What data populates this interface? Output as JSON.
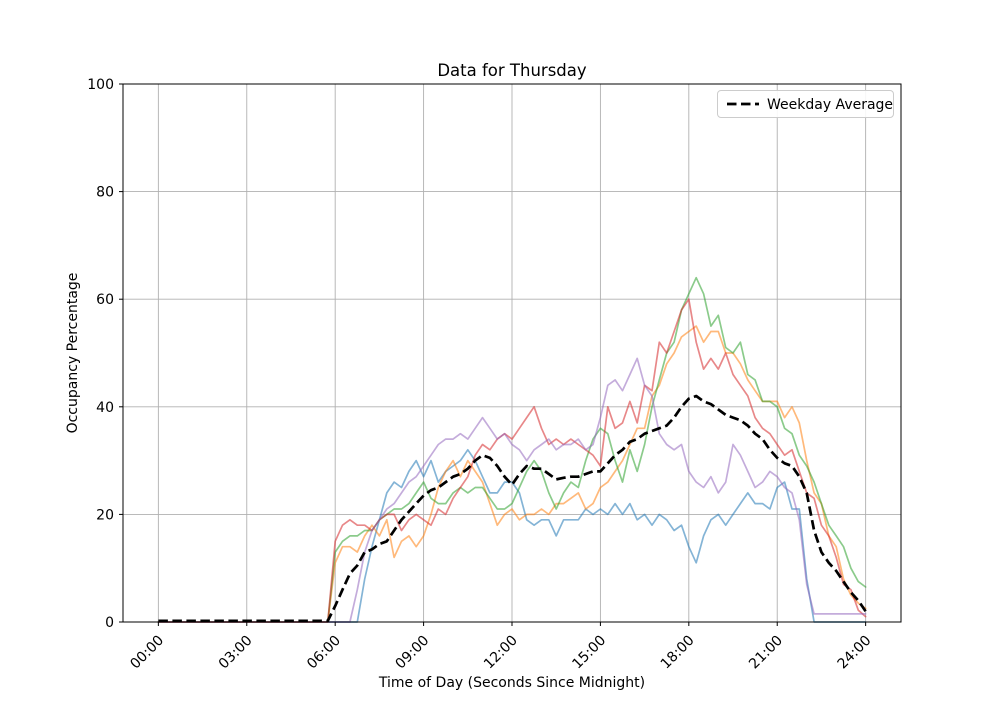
{
  "window": {
    "title": "Data for Thursday"
  },
  "chart_data": {
    "type": "line",
    "title": "Data for Thursday",
    "xlabel": "Time of Day (Seconds Since Midnight)",
    "ylabel": "Occupancy Percentage",
    "ylim": [
      0,
      100
    ],
    "y_ticks": [
      0,
      20,
      40,
      60,
      80,
      100
    ],
    "xlim_seconds": [
      -4320,
      90720
    ],
    "x_ticks": [
      {
        "label": "00:00",
        "seconds": 0
      },
      {
        "label": "03:00",
        "seconds": 10800
      },
      {
        "label": "06:00",
        "seconds": 21600
      },
      {
        "label": "09:00",
        "seconds": 32400
      },
      {
        "label": "12:00",
        "seconds": 43200
      },
      {
        "label": "15:00",
        "seconds": 54000
      },
      {
        "label": "18:00",
        "seconds": 64800
      },
      {
        "label": "21:00",
        "seconds": 75600
      },
      {
        "label": "24:00",
        "seconds": 86400
      }
    ],
    "grid": true,
    "grid_color": "#b0b0b0",
    "x_start_seconds": 0,
    "x_step_seconds": 900,
    "legend": {
      "position": "upper right",
      "entries": [
        {
          "label": "Weekday Average",
          "style": "dashed",
          "color": "#000000"
        }
      ]
    },
    "series": [
      {
        "name": "thursday-series-1",
        "color": "#1f77b4",
        "alpha": 0.55,
        "values": [
          0,
          0,
          0,
          0,
          0,
          0,
          0,
          0,
          0,
          0,
          0,
          0,
          0,
          0,
          0,
          0,
          0,
          0,
          0,
          0,
          0,
          0,
          0,
          0,
          0,
          0,
          0,
          0,
          8,
          14,
          19,
          24,
          26,
          25,
          28,
          30,
          27,
          30,
          26,
          28,
          29,
          30,
          32,
          30,
          27,
          24,
          24,
          26,
          26,
          24,
          19,
          18,
          19,
          19,
          16,
          19,
          19,
          19,
          21,
          20,
          21,
          20,
          22,
          20,
          22,
          19,
          20,
          18,
          20,
          19,
          17,
          18,
          14,
          11,
          16,
          19,
          20,
          18,
          20,
          22,
          24,
          22,
          22,
          21,
          25,
          26,
          21,
          21,
          8,
          0,
          0,
          0,
          0,
          0,
          0,
          0,
          0
        ]
      },
      {
        "name": "thursday-series-2",
        "color": "#ff7f0e",
        "alpha": 0.55,
        "values": [
          0,
          0,
          0,
          0,
          0,
          0,
          0,
          0,
          0,
          0,
          0,
          0,
          0,
          0,
          0,
          0,
          0,
          0,
          0,
          0,
          0,
          0,
          0,
          0,
          11,
          14,
          14,
          13,
          16,
          18,
          16,
          19,
          12,
          15,
          16,
          14,
          16,
          20,
          25,
          28,
          30,
          27,
          30,
          28,
          26,
          22,
          18,
          20,
          21,
          19,
          20,
          20,
          21,
          20,
          22,
          22,
          23,
          24,
          21,
          22,
          25,
          26,
          28,
          30,
          33,
          36,
          36,
          42,
          44,
          48,
          50,
          53,
          54,
          55,
          52,
          54,
          54,
          50,
          50,
          48,
          45,
          43,
          41,
          41,
          41,
          38,
          40,
          37,
          30,
          24,
          22,
          16,
          14,
          8,
          5,
          3.5,
          2.5
        ]
      },
      {
        "name": "thursday-series-3",
        "color": "#2ca02c",
        "alpha": 0.55,
        "values": [
          0,
          0,
          0,
          0,
          0,
          0,
          0,
          0,
          0,
          0,
          0,
          0,
          0,
          0,
          0,
          0,
          0,
          0,
          0,
          0,
          0,
          0,
          0,
          0,
          13,
          15,
          16,
          16,
          17,
          17,
          19,
          20,
          21,
          21,
          22,
          24,
          26,
          23,
          22,
          22,
          24,
          25,
          24,
          25,
          25,
          23,
          21,
          21,
          22,
          25,
          28,
          30,
          28,
          24,
          21,
          24,
          26,
          25,
          30,
          34,
          36,
          35,
          30,
          26,
          32,
          28,
          33,
          40,
          45,
          50,
          52,
          58,
          61,
          64,
          61,
          55,
          57,
          51,
          50,
          52,
          46,
          45,
          41,
          41,
          40,
          36,
          35,
          31,
          29,
          26,
          22,
          18,
          16,
          14,
          10,
          7.5,
          6.5
        ]
      },
      {
        "name": "thursday-series-4",
        "color": "#d62728",
        "alpha": 0.55,
        "values": [
          0,
          0,
          0,
          0,
          0,
          0,
          0,
          0,
          0,
          0,
          0,
          0,
          0,
          0,
          0,
          0,
          0,
          0,
          0,
          0,
          0,
          0,
          0,
          0,
          15,
          18,
          19,
          18,
          18,
          17,
          19,
          20,
          20,
          17,
          19,
          20,
          19,
          18,
          21,
          20,
          23,
          25,
          27,
          31,
          33,
          32,
          34,
          35,
          34,
          36,
          38,
          40,
          36,
          33,
          34,
          33,
          34,
          33,
          32,
          31,
          29,
          40,
          36,
          37,
          41,
          37,
          44,
          43,
          52,
          50,
          54,
          58,
          60,
          52,
          47,
          49,
          47,
          50,
          46,
          44,
          42,
          38,
          36,
          35,
          33,
          31,
          32,
          28,
          24,
          23,
          18,
          16,
          12,
          7,
          6,
          2.2,
          1
        ]
      },
      {
        "name": "thursday-series-5",
        "color": "#9467bd",
        "alpha": 0.55,
        "values": [
          0,
          0,
          0,
          0,
          0,
          0,
          0,
          0,
          0,
          0,
          0,
          0,
          0,
          0,
          0,
          0,
          0,
          0,
          0,
          0,
          0,
          0,
          0,
          0,
          0,
          0,
          0,
          6,
          13,
          17,
          19,
          21,
          22,
          24,
          26,
          27,
          29,
          31,
          33,
          34,
          34,
          35,
          34,
          36,
          38,
          36,
          34,
          35,
          33,
          32,
          30,
          32,
          33,
          34,
          32,
          33,
          33,
          34,
          32,
          33,
          38,
          44,
          45,
          43,
          46,
          49,
          44,
          42,
          35,
          33,
          32,
          33,
          28,
          26,
          25,
          27,
          24,
          26,
          33,
          31,
          28,
          25,
          26,
          28,
          27,
          25,
          24,
          19,
          7,
          1.5,
          1.5,
          1.5,
          1.5,
          1.5,
          1.5,
          1.5,
          1.5
        ]
      }
    ],
    "average_series": {
      "name": "weekday-average",
      "color": "#000000",
      "style": "dashed",
      "linewidth": 2.7,
      "values": [
        0.2,
        0.2,
        0.2,
        0.2,
        0.2,
        0.2,
        0.2,
        0.2,
        0.2,
        0.2,
        0.2,
        0.2,
        0.2,
        0.2,
        0.2,
        0.2,
        0.2,
        0.2,
        0.2,
        0.2,
        0.2,
        0.2,
        0.2,
        0.2,
        3,
        6,
        9,
        10.5,
        13,
        13.5,
        14.5,
        15,
        17,
        19,
        20.5,
        22,
        23.5,
        24.5,
        25,
        26,
        27,
        27.5,
        28.5,
        30,
        31,
        30.5,
        29,
        27,
        25.5,
        27.5,
        29,
        28.5,
        28.5,
        27.5,
        26.5,
        26.8,
        27,
        27,
        27.5,
        28,
        28,
        29.5,
        31,
        32,
        33.5,
        34,
        35,
        35.5,
        36,
        36.5,
        38,
        40,
        41.5,
        42,
        41,
        40.5,
        39.5,
        38.5,
        38,
        37.5,
        36.5,
        35,
        34,
        32,
        30.5,
        29.5,
        29,
        27,
        24,
        17,
        13,
        11,
        9.5,
        7.5,
        5.5,
        4,
        2
      ]
    }
  }
}
